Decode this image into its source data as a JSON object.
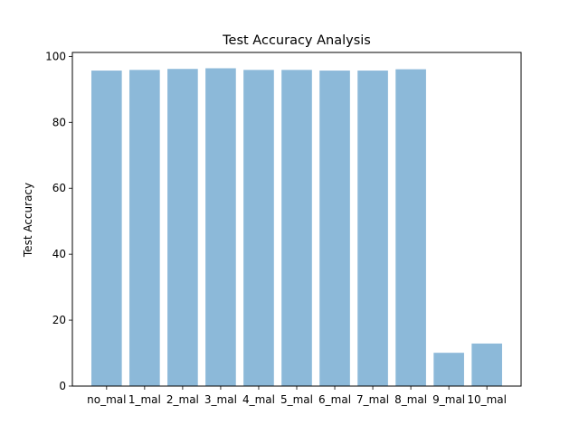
{
  "chart_data": {
    "type": "bar",
    "title": "Test Accuracy Analysis",
    "xlabel": "",
    "ylabel": "Test Accuracy",
    "categories": [
      "no_mal",
      "1_mal",
      "2_mal",
      "3_mal",
      "4_mal",
      "5_mal",
      "6_mal",
      "7_mal",
      "8_mal",
      "9_mal",
      "10_mal"
    ],
    "values": [
      95.7,
      95.9,
      96.2,
      96.4,
      95.9,
      95.9,
      95.7,
      95.7,
      96.1,
      10.1,
      12.9
    ],
    "ylim": [
      0,
      101.2
    ],
    "yticks": [
      0,
      20,
      40,
      60,
      80,
      100
    ],
    "bar_color": "#8cb9d9",
    "grid": false,
    "legend": "none"
  }
}
